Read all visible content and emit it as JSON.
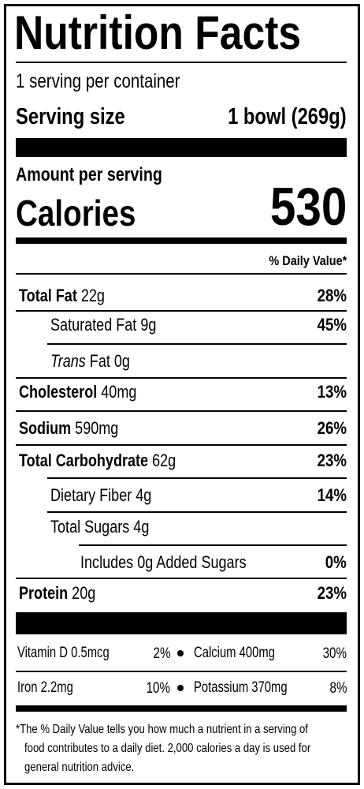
{
  "title": "Nutrition Facts",
  "servings": "1 serving per container",
  "serving_size": {
    "label": "Serving size",
    "value": "1 bowl (269g)"
  },
  "amount_per_serving": "Amount per serving",
  "calories": {
    "label": "Calories",
    "value": "530"
  },
  "daily_value_header": "% Daily Value*",
  "nutrients": [
    {
      "name": "Total Fat",
      "amount": "22g",
      "dv": "28%"
    },
    {
      "name": "Saturated Fat",
      "amount": "9g",
      "dv": "45%"
    },
    {
      "prefix": "Trans",
      "name": "Fat",
      "amount": "0g"
    },
    {
      "name": "Cholesterol",
      "amount": "40mg",
      "dv": "13%"
    },
    {
      "name": "Sodium",
      "amount": "590mg",
      "dv": "26%"
    },
    {
      "name": "Total Carbohydrate",
      "amount": "62g",
      "dv": "23%"
    },
    {
      "name": "Dietary Fiber",
      "amount": "4g",
      "dv": "14%"
    },
    {
      "name": "Total Sugars",
      "amount": "4g"
    },
    {
      "name": "Includes 0g Added Sugars",
      "dv": "0%"
    },
    {
      "name": "Protein",
      "amount": "20g",
      "dv": "23%"
    }
  ],
  "vitamins": [
    [
      {
        "name": "Vitamin D",
        "amount": "0.5mcg",
        "dv": "2%"
      },
      {
        "name": "Calcium",
        "amount": "400mg",
        "dv": "30%"
      }
    ],
    [
      {
        "name": "Iron",
        "amount": "2.2mg",
        "dv": "10%"
      },
      {
        "name": "Potassium",
        "amount": "370mg",
        "dv": "8%"
      }
    ]
  ],
  "footnote": [
    "*The % Daily Value tells you how much a nutrient in a serving of",
    "food contributes to a daily diet. 2,000 calories a day is used for",
    "general nutrition advice."
  ]
}
